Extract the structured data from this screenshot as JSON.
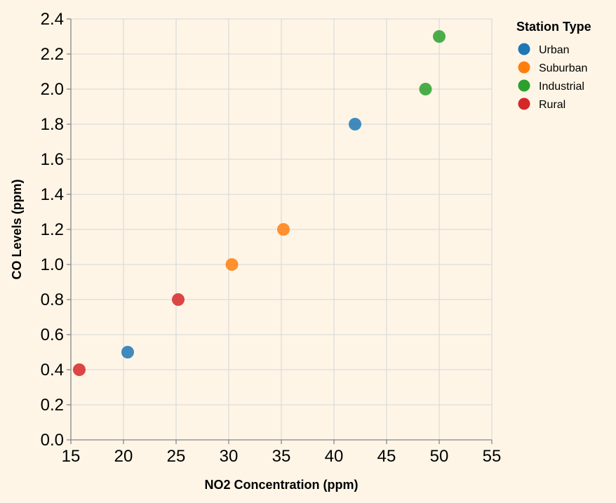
{
  "chart_data": {
    "type": "scatter",
    "title": "",
    "xlabel": "NO2 Concentration (ppm)",
    "ylabel": "CO Levels (ppm)",
    "xlim": [
      15,
      55
    ],
    "ylim": [
      0,
      2.4
    ],
    "x_ticks": [
      "15",
      "20",
      "25",
      "30",
      "35",
      "40",
      "45",
      "50",
      "55"
    ],
    "y_ticks": [
      "0.0",
      "0.2",
      "0.4",
      "0.6",
      "0.8",
      "1.0",
      "1.2",
      "1.4",
      "1.6",
      "1.8",
      "2.0",
      "2.2",
      "2.4"
    ],
    "grid": true,
    "legend": {
      "title": "Station Type",
      "placement": "top-right"
    },
    "series": [
      {
        "name": "Urban",
        "color": "#1f77b4",
        "points": [
          {
            "x": 20.4,
            "y": 0.5
          },
          {
            "x": 42.0,
            "y": 1.8
          }
        ]
      },
      {
        "name": "Suburban",
        "color": "#ff7f0e",
        "points": [
          {
            "x": 30.3,
            "y": 1.0
          },
          {
            "x": 35.2,
            "y": 1.2
          }
        ]
      },
      {
        "name": "Industrial",
        "color": "#2ca02c",
        "points": [
          {
            "x": 48.7,
            "y": 2.0
          },
          {
            "x": 50.0,
            "y": 2.3
          }
        ]
      },
      {
        "name": "Rural",
        "color": "#d62728",
        "points": [
          {
            "x": 15.8,
            "y": 0.4
          },
          {
            "x": 25.2,
            "y": 0.8
          }
        ]
      }
    ]
  }
}
